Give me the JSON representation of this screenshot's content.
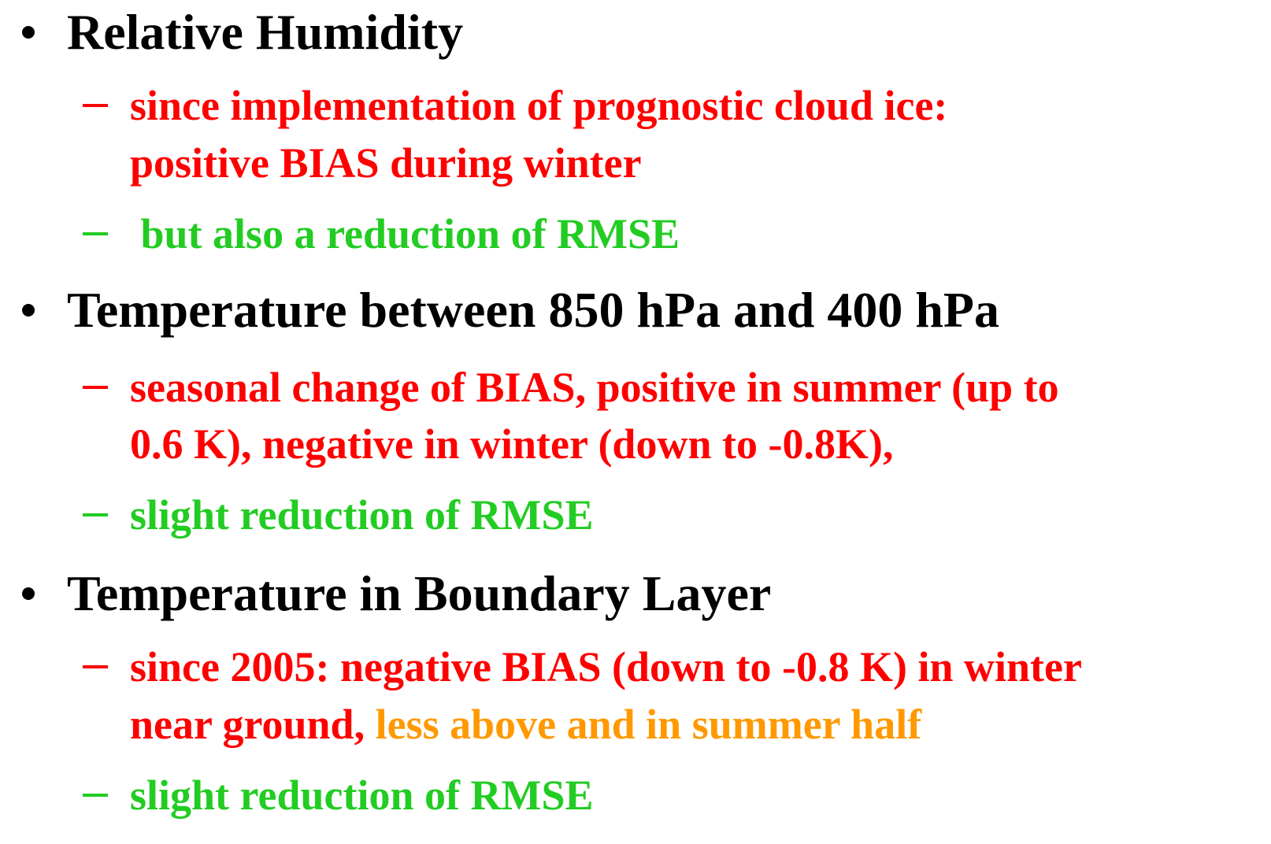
{
  "items": [
    {
      "title": "Relative Humidity",
      "subitems": [
        {
          "lines": [
            [
              {
                "text": "since implementation of prognostic cloud ice:",
                "color": "#ff0000"
              }
            ],
            [
              {
                "text": "positive BIAS during winter",
                "color": "#ff0000"
              }
            ]
          ]
        },
        {
          "lines": [
            [
              {
                "text": " but also a reduction of RMSE",
                "color": "#22cc22"
              }
            ]
          ]
        }
      ]
    },
    {
      "title": "Temperature between 850 hPa and 400 hPa",
      "subitems": [
        {
          "lines": [
            [
              {
                "text": "seasonal change of BIAS, positive in summer (up to",
                "color": "#ff0000"
              }
            ],
            [
              {
                "text": "0.6 K), negative in winter (down to -0.8K),",
                "color": "#ff0000"
              }
            ]
          ]
        },
        {
          "lines": [
            [
              {
                "text": "slight reduction of RMSE",
                "color": "#22cc22"
              }
            ]
          ]
        }
      ]
    },
    {
      "title": "Temperature in Boundary Layer",
      "subitems": [
        {
          "lines": [
            [
              {
                "text": "since 2005: negative BIAS (down to -0.8 K) in winter",
                "color": "#ff0000"
              }
            ],
            [
              {
                "text": "near ground, ",
                "color": "#ff0000"
              },
              {
                "text": "less above and in summer half",
                "color": "#ff9900"
              }
            ]
          ]
        },
        {
          "lines": [
            [
              {
                "text": "slight reduction of RMSE",
                "color": "#22cc22"
              }
            ]
          ]
        }
      ]
    }
  ]
}
